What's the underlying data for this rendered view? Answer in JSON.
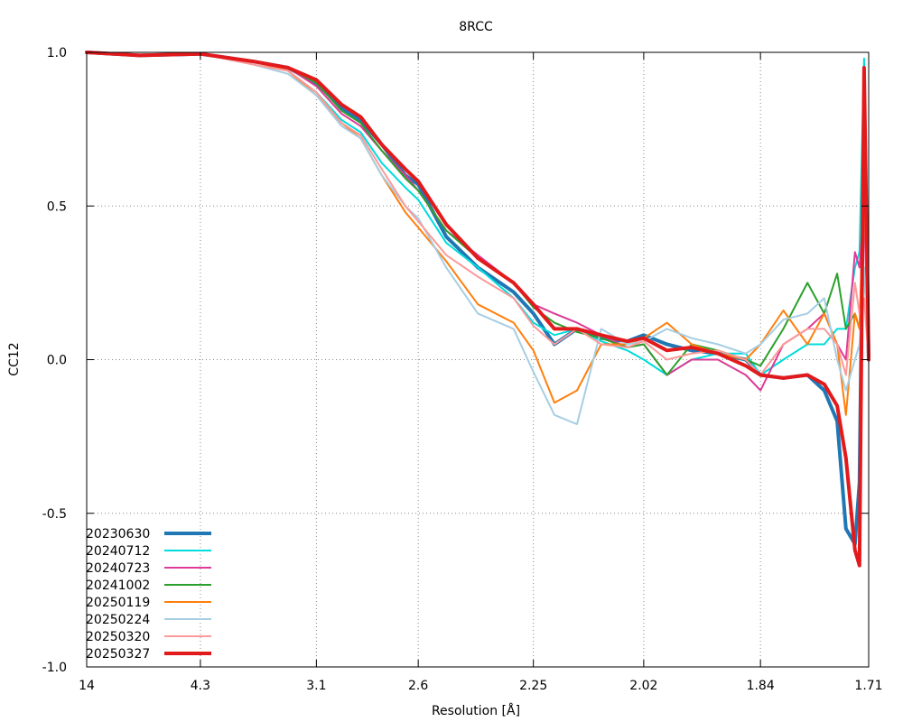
{
  "chart_data": {
    "type": "line",
    "title": "8RCC",
    "xlabel": "Resolution [Å]",
    "ylabel": "CC12",
    "x_scale": "reciprocal-squared",
    "xlim": [
      14,
      1.71
    ],
    "ylim": [
      -1.0,
      1.0
    ],
    "x_ticks": [
      14,
      4.3,
      3.1,
      2.6,
      2.25,
      2.02,
      1.84,
      1.71
    ],
    "x_tick_labels": [
      "14",
      "4.3",
      "3.1",
      "2.6",
      "2.25",
      "2.02",
      "1.84",
      "1.71"
    ],
    "y_ticks": [
      1.0,
      0.5,
      0.0,
      -0.5,
      -1.0
    ],
    "y_tick_labels": [
      "1.0",
      "0.5",
      "0.0",
      "-0.5",
      "-1.0"
    ],
    "grid": true,
    "legend_position": "bottom-left",
    "series": [
      {
        "name": "20230630",
        "color": "#1f77b4",
        "width": 4,
        "x": [
          14,
          6,
          4.3,
          3.6,
          3.3,
          3.1,
          2.95,
          2.85,
          2.75,
          2.65,
          2.6,
          2.5,
          2.4,
          2.3,
          2.25,
          2.2,
          2.15,
          2.1,
          2.05,
          2.02,
          1.98,
          1.94,
          1.9,
          1.86,
          1.84,
          1.81,
          1.78,
          1.76,
          1.745,
          1.735,
          1.725,
          1.72,
          1.715,
          1.71
        ],
        "y": [
          1.0,
          0.99,
          0.995,
          0.97,
          0.95,
          0.9,
          0.82,
          0.78,
          0.7,
          0.6,
          0.57,
          0.4,
          0.3,
          0.22,
          0.15,
          0.05,
          0.1,
          0.07,
          0.06,
          0.08,
          0.05,
          0.03,
          0.02,
          0.0,
          -0.05,
          -0.06,
          -0.05,
          -0.1,
          -0.2,
          -0.55,
          -0.6,
          -0.4,
          0.8,
          0.0
        ]
      },
      {
        "name": "20240712",
        "color": "#00dcdc",
        "width": 2,
        "x": [
          14,
          6,
          4.3,
          3.6,
          3.3,
          3.1,
          2.95,
          2.85,
          2.75,
          2.65,
          2.6,
          2.5,
          2.4,
          2.3,
          2.25,
          2.2,
          2.15,
          2.1,
          2.05,
          2.02,
          1.98,
          1.94,
          1.9,
          1.86,
          1.84,
          1.81,
          1.78,
          1.76,
          1.745,
          1.735,
          1.725,
          1.72,
          1.715,
          1.71
        ],
        "y": [
          1.0,
          0.99,
          0.995,
          0.97,
          0.94,
          0.87,
          0.78,
          0.74,
          0.64,
          0.56,
          0.52,
          0.38,
          0.3,
          0.2,
          0.12,
          0.08,
          0.1,
          0.06,
          0.03,
          0.0,
          -0.05,
          0.0,
          0.02,
          0.02,
          -0.05,
          0.0,
          0.05,
          0.05,
          0.1,
          0.1,
          0.3,
          0.35,
          0.98,
          0.0
        ]
      },
      {
        "name": "20240723",
        "color": "#dc3c96",
        "width": 2,
        "x": [
          14,
          6,
          4.3,
          3.6,
          3.3,
          3.1,
          2.95,
          2.85,
          2.75,
          2.65,
          2.6,
          2.5,
          2.4,
          2.3,
          2.25,
          2.2,
          2.15,
          2.1,
          2.05,
          2.02,
          1.98,
          1.94,
          1.9,
          1.86,
          1.84,
          1.81,
          1.78,
          1.76,
          1.745,
          1.735,
          1.725,
          1.72,
          1.715,
          1.71
        ],
        "y": [
          1.0,
          0.99,
          0.995,
          0.97,
          0.95,
          0.89,
          0.8,
          0.76,
          0.68,
          0.6,
          0.55,
          0.42,
          0.34,
          0.25,
          0.18,
          0.15,
          0.12,
          0.08,
          0.04,
          0.05,
          -0.05,
          0.0,
          0.0,
          -0.05,
          -0.1,
          0.05,
          0.1,
          0.15,
          0.05,
          0.0,
          0.35,
          0.3,
          0.5,
          0.0
        ]
      },
      {
        "name": "20241002",
        "color": "#2ca02c",
        "width": 2,
        "x": [
          14,
          6,
          4.3,
          3.6,
          3.3,
          3.1,
          2.95,
          2.85,
          2.75,
          2.65,
          2.6,
          2.5,
          2.4,
          2.3,
          2.25,
          2.2,
          2.15,
          2.1,
          2.05,
          2.02,
          1.98,
          1.94,
          1.9,
          1.86,
          1.84,
          1.81,
          1.78,
          1.76,
          1.745,
          1.735,
          1.725,
          1.72,
          1.715,
          1.71
        ],
        "y": [
          1.0,
          0.99,
          0.995,
          0.97,
          0.95,
          0.9,
          0.81,
          0.77,
          0.68,
          0.59,
          0.55,
          0.42,
          0.33,
          0.25,
          0.17,
          0.12,
          0.09,
          0.07,
          0.04,
          0.05,
          -0.05,
          0.05,
          0.03,
          0.0,
          -0.02,
          0.1,
          0.25,
          0.15,
          0.28,
          0.1,
          0.15,
          0.1,
          0.3,
          0.0
        ]
      },
      {
        "name": "20250119",
        "color": "#ff7f0e",
        "width": 2,
        "x": [
          14,
          6,
          4.3,
          3.6,
          3.3,
          3.1,
          2.95,
          2.85,
          2.75,
          2.65,
          2.6,
          2.5,
          2.4,
          2.3,
          2.25,
          2.2,
          2.15,
          2.1,
          2.05,
          2.02,
          1.98,
          1.94,
          1.9,
          1.86,
          1.84,
          1.81,
          1.78,
          1.76,
          1.745,
          1.735,
          1.725,
          1.72,
          1.715,
          1.71
        ],
        "y": [
          1.0,
          0.99,
          0.995,
          0.97,
          0.94,
          0.86,
          0.77,
          0.72,
          0.6,
          0.48,
          0.43,
          0.32,
          0.18,
          0.12,
          0.03,
          -0.14,
          -0.1,
          0.05,
          0.05,
          0.07,
          0.12,
          0.05,
          0.02,
          0.0,
          0.05,
          0.16,
          0.05,
          0.15,
          0.05,
          -0.18,
          0.15,
          0.1,
          0.6,
          0.0
        ]
      },
      {
        "name": "20250224",
        "color": "#a6cee3",
        "width": 2,
        "x": [
          14,
          6,
          4.3,
          3.6,
          3.3,
          3.1,
          2.95,
          2.85,
          2.75,
          2.65,
          2.6,
          2.5,
          2.4,
          2.3,
          2.25,
          2.2,
          2.15,
          2.1,
          2.05,
          2.02,
          1.98,
          1.94,
          1.9,
          1.86,
          1.84,
          1.81,
          1.78,
          1.76,
          1.745,
          1.735,
          1.725,
          1.72,
          1.715,
          1.71
        ],
        "y": [
          1.0,
          0.99,
          0.995,
          0.96,
          0.93,
          0.86,
          0.76,
          0.72,
          0.6,
          0.5,
          0.46,
          0.3,
          0.15,
          0.1,
          -0.04,
          -0.18,
          -0.21,
          0.1,
          0.05,
          0.06,
          0.1,
          0.07,
          0.05,
          0.02,
          0.05,
          0.13,
          0.15,
          0.2,
          0.0,
          -0.1,
          0.0,
          0.05,
          0.3,
          0.0
        ]
      },
      {
        "name": "20250320",
        "color": "#fb9a99",
        "width": 2,
        "x": [
          14,
          6,
          4.3,
          3.6,
          3.3,
          3.1,
          2.95,
          2.85,
          2.75,
          2.65,
          2.6,
          2.5,
          2.4,
          2.3,
          2.25,
          2.2,
          2.15,
          2.1,
          2.05,
          2.02,
          1.98,
          1.94,
          1.9,
          1.86,
          1.84,
          1.81,
          1.78,
          1.76,
          1.745,
          1.735,
          1.725,
          1.72,
          1.715,
          1.71
        ],
        "y": [
          1.0,
          0.99,
          0.995,
          0.96,
          0.94,
          0.87,
          0.77,
          0.73,
          0.62,
          0.5,
          0.45,
          0.34,
          0.27,
          0.2,
          0.11,
          0.05,
          0.1,
          0.05,
          0.04,
          0.06,
          0.0,
          0.02,
          0.03,
          0.0,
          -0.05,
          0.05,
          0.1,
          0.1,
          0.05,
          -0.05,
          0.25,
          0.15,
          0.2,
          0.0
        ]
      },
      {
        "name": "20250327",
        "color": "#e31a1c",
        "width": 4,
        "x": [
          14,
          6,
          4.3,
          3.6,
          3.3,
          3.1,
          2.95,
          2.85,
          2.75,
          2.65,
          2.6,
          2.5,
          2.4,
          2.3,
          2.25,
          2.2,
          2.15,
          2.1,
          2.05,
          2.02,
          1.98,
          1.94,
          1.9,
          1.86,
          1.84,
          1.81,
          1.78,
          1.76,
          1.745,
          1.735,
          1.725,
          1.72,
          1.715,
          1.71
        ],
        "y": [
          1.0,
          0.99,
          0.995,
          0.97,
          0.95,
          0.91,
          0.83,
          0.79,
          0.7,
          0.62,
          0.58,
          0.44,
          0.33,
          0.25,
          0.18,
          0.1,
          0.1,
          0.08,
          0.06,
          0.07,
          0.03,
          0.04,
          0.02,
          -0.02,
          -0.05,
          -0.06,
          -0.05,
          -0.08,
          -0.15,
          -0.32,
          -0.62,
          -0.67,
          0.95,
          0.0
        ]
      }
    ]
  }
}
